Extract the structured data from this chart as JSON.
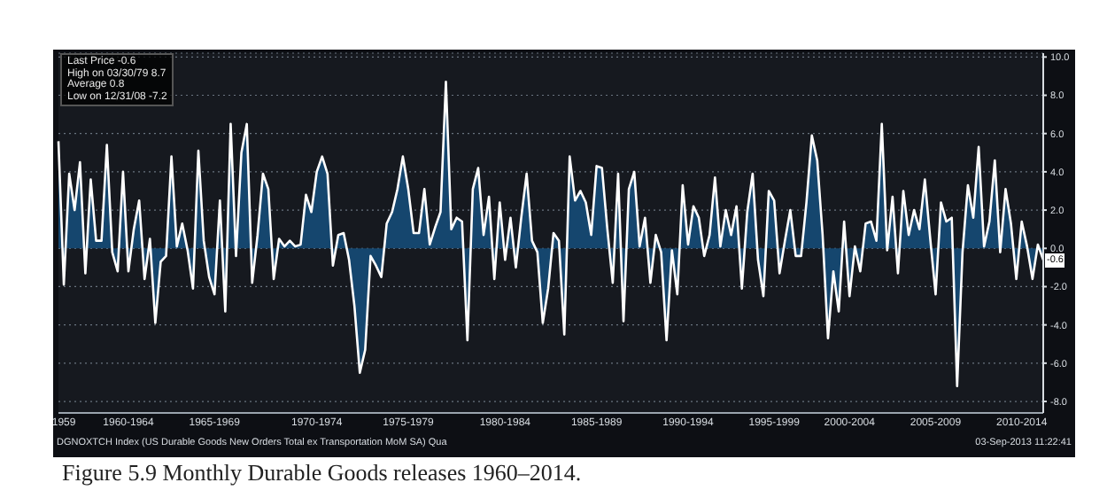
{
  "chart_data": {
    "type": "area",
    "title": "Figure 5.9 Monthly Durable Goods releases 1960–2014.",
    "categories": [
      null,
      "1959",
      null,
      null,
      null,
      null,
      null,
      null,
      null,
      null,
      null,
      null,
      null,
      "1960-1964",
      null,
      null,
      null,
      null,
      null,
      null,
      null,
      null,
      null,
      null,
      null,
      null,
      null,
      null,
      null,
      "1965-1969",
      null,
      null,
      null,
      null,
      null,
      null,
      null,
      null,
      null,
      null,
      null,
      null,
      null,
      null,
      null,
      null,
      null,
      null,
      "1970-1974",
      null,
      null,
      null,
      null,
      null,
      null,
      null,
      null,
      null,
      null,
      null,
      null,
      null,
      null,
      null,
      null,
      "1975-1979",
      null,
      null,
      null,
      null,
      null,
      null,
      null,
      null,
      null,
      null,
      null,
      null,
      null,
      null,
      null,
      null,
      null,
      "1980-1984",
      null,
      null,
      null,
      null,
      null,
      null,
      null,
      null,
      null,
      null,
      null,
      null,
      null,
      null,
      null,
      null,
      "1985-1989",
      null,
      null,
      null,
      null,
      null,
      null,
      null,
      null,
      null,
      null,
      null,
      null,
      null,
      null,
      null,
      null,
      "1990-1994",
      null,
      null,
      null,
      null,
      null,
      null,
      null,
      null,
      null,
      null,
      null,
      null,
      null,
      null,
      null,
      "1995-1999",
      null,
      null,
      null,
      null,
      null,
      null,
      null,
      null,
      null,
      null,
      null,
      null,
      null,
      "2000-2004",
      null,
      null,
      null,
      null,
      null,
      null,
      null,
      null,
      null,
      null,
      null,
      null,
      null,
      null,
      null,
      "2005-2009",
      null,
      null,
      null,
      null,
      null,
      null,
      null,
      null,
      null,
      null,
      null,
      null,
      null,
      null,
      null,
      "2010-2014",
      null,
      null,
      null,
      null
    ],
    "series": [
      {
        "color": "#15466e",
        "values": [
          5.6,
          -1.9,
          3.9,
          2.0,
          4.5,
          -1.3,
          3.6,
          0.4,
          0.4,
          5.4,
          -0.2,
          -1.2,
          4.0,
          -1.2,
          1.0,
          2.5,
          -1.6,
          0.5,
          -3.9,
          -0.7,
          -0.4,
          4.8,
          0.1,
          1.3,
          -0.1,
          -2.1,
          5.1,
          0.4,
          -1.5,
          -2.4,
          2.5,
          -3.3,
          6.5,
          -0.4,
          5.0,
          6.5,
          -1.8,
          0.7,
          3.9,
          3.1,
          -1.6,
          0.5,
          0.1,
          0.4,
          0.1,
          0.2,
          2.8,
          1.9,
          4.0,
          4.8,
          3.9,
          -0.9,
          0.7,
          0.8,
          -0.6,
          -3.0,
          -6.5,
          -5.3,
          -0.4,
          -0.9,
          -1.5,
          1.3,
          1.9,
          3.1,
          4.8,
          3.1,
          0.8,
          0.8,
          3.1,
          0.2,
          1.1,
          1.9,
          8.7,
          1.0,
          1.6,
          1.4,
          -4.8,
          3.1,
          4.2,
          0.7,
          2.7,
          -1.6,
          2.4,
          -0.6,
          1.6,
          -1.0,
          1.6,
          3.9,
          0.4,
          -0.2,
          -3.9,
          -2.1,
          0.8,
          0.4,
          -4.5,
          4.8,
          2.5,
          3.0,
          2.4,
          0.7,
          4.3,
          4.2,
          1.0,
          -1.8,
          3.9,
          -3.8,
          3.1,
          4.0,
          0.1,
          1.6,
          -1.8,
          0.7,
          -0.2,
          -4.8,
          -0.1,
          -2.4,
          3.3,
          0.2,
          2.2,
          1.6,
          -0.4,
          0.7,
          3.7,
          0.1,
          2.0,
          0.7,
          2.2,
          -2.1,
          1.9,
          3.9,
          -0.6,
          -2.5,
          3.0,
          2.5,
          -1.3,
          0.4,
          2.0,
          -0.4,
          -0.4,
          2.4,
          5.9,
          4.6,
          0.7,
          -4.7,
          -1.2,
          -3.3,
          1.4,
          -2.5,
          0.1,
          -1.2,
          1.3,
          1.4,
          0.4,
          6.5,
          -0.1,
          2.7,
          -1.3,
          3.0,
          0.7,
          2.0,
          1.0,
          3.6,
          0.5,
          -2.4,
          2.4,
          1.4,
          1.6,
          -7.2,
          -0.2,
          3.3,
          1.6,
          5.3,
          0.1,
          1.4,
          4.6,
          -0.2,
          3.1,
          1.3,
          -1.6,
          1.4,
          0.1,
          -1.6,
          0.2,
          -0.6
        ]
      }
    ],
    "ylim": [
      -8.6,
      10.2
    ],
    "yticks": [
      {
        "value": -8,
        "label": "-8.0"
      },
      {
        "value": -6,
        "label": "-6.0"
      },
      {
        "value": -4,
        "label": "-4.0"
      },
      {
        "value": -2,
        "label": "-2.0"
      },
      {
        "value": 0,
        "label": "0.0"
      },
      {
        "value": 2,
        "label": "2.0"
      },
      {
        "value": 4,
        "label": "4.0"
      },
      {
        "value": 6,
        "label": "6.0"
      },
      {
        "value": 8,
        "label": "8.0"
      },
      {
        "value": 10,
        "label": "10.0"
      }
    ],
    "grid": "y",
    "annotations": [
      "Last Price -0.6",
      "High on 03/30/79 8.7",
      "Average 0.8",
      "Low on 12/31/08 -7.2",
      "DGNOXTCH Index (US Durable Goods New Orders Total ex Transportation MoM SA) Qua",
      "03-Sep-2013 11:22:41",
      {
        "text": "-0.6",
        "y": -0.6
      }
    ]
  }
}
